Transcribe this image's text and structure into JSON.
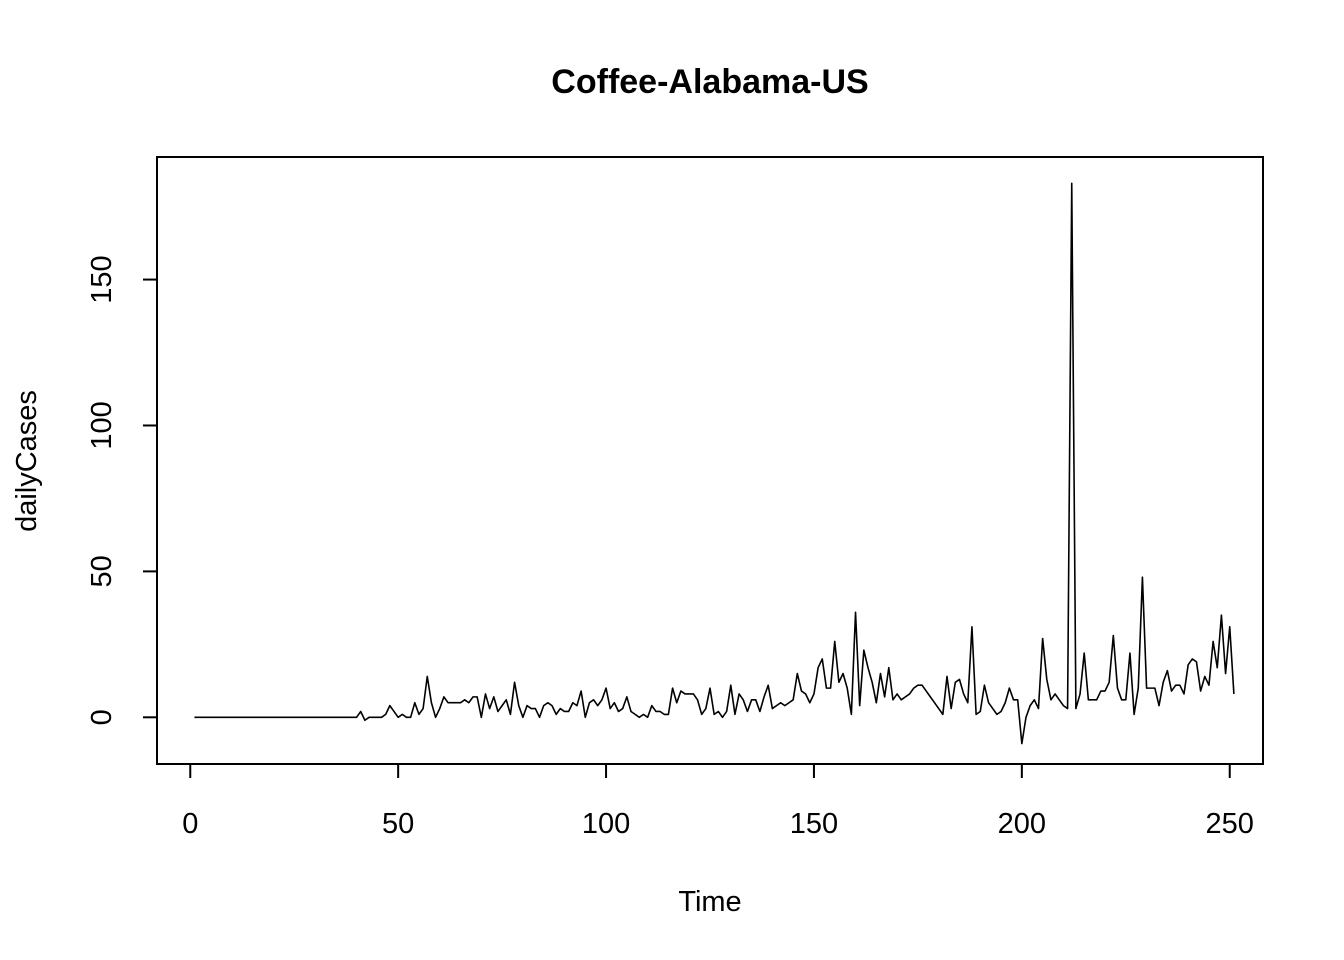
{
  "chart_data": {
    "type": "line",
    "title": "Coffee-Alabama-US",
    "xlabel": "Time",
    "ylabel": "dailyCases",
    "xlim": [
      -8,
      258
    ],
    "ylim": [
      -16,
      192
    ],
    "x_ticks": [
      0,
      50,
      100,
      150,
      200,
      250
    ],
    "y_ticks": [
      0,
      50,
      100,
      150
    ],
    "grid": false,
    "legend": "none",
    "line_color": "#000000",
    "series": [
      {
        "x_start": 1,
        "values": [
          0,
          0,
          0,
          0,
          0,
          0,
          0,
          0,
          0,
          0,
          0,
          0,
          0,
          0,
          0,
          0,
          0,
          0,
          0,
          0,
          0,
          0,
          0,
          0,
          0,
          0,
          0,
          0,
          0,
          0,
          0,
          0,
          0,
          0,
          0,
          0,
          0,
          0,
          0,
          0,
          2,
          -1,
          0,
          0,
          0,
          0,
          1,
          4,
          2,
          0,
          1,
          0,
          0,
          5,
          1,
          3,
          14,
          5,
          0,
          3,
          7,
          5,
          5,
          5,
          5,
          6,
          5,
          7,
          7,
          0,
          8,
          3,
          7,
          2,
          4,
          6,
          1,
          12,
          4,
          0,
          4,
          3,
          3,
          0,
          4,
          5,
          4,
          1,
          3,
          2,
          2,
          5,
          4,
          9,
          0,
          5,
          6,
          4,
          6,
          10,
          3,
          5,
          2,
          3,
          7,
          2,
          1,
          0,
          1,
          0,
          4,
          2,
          2,
          1,
          1,
          10,
          5,
          9,
          8,
          8,
          8,
          6,
          1,
          3,
          10,
          1,
          2,
          0,
          2,
          11,
          1,
          8,
          6,
          2,
          6,
          6,
          2,
          7,
          11,
          3,
          4,
          5,
          4,
          5,
          6,
          15,
          9,
          8,
          5,
          8,
          17,
          20,
          10,
          10,
          26,
          12,
          15,
          10,
          1,
          36,
          4,
          23,
          17,
          12,
          5,
          15,
          7,
          17,
          6,
          8,
          6,
          7,
          8,
          10,
          11,
          11,
          9,
          7,
          5,
          3,
          1,
          14,
          3,
          12,
          13,
          8,
          5,
          31,
          1,
          2,
          11,
          5,
          3,
          1,
          2,
          5,
          10,
          6,
          6,
          -9,
          0,
          4,
          6,
          3,
          27,
          13,
          6,
          8,
          6,
          4,
          3,
          183,
          3,
          8,
          22,
          6,
          6,
          6,
          9,
          9,
          12,
          28,
          10,
          6,
          6,
          22,
          1,
          10,
          48,
          10,
          10,
          10,
          4,
          12,
          16,
          9,
          11,
          11,
          8,
          18,
          20,
          19,
          9,
          14,
          11,
          26,
          17,
          35,
          15,
          31,
          8
        ]
      }
    ]
  }
}
